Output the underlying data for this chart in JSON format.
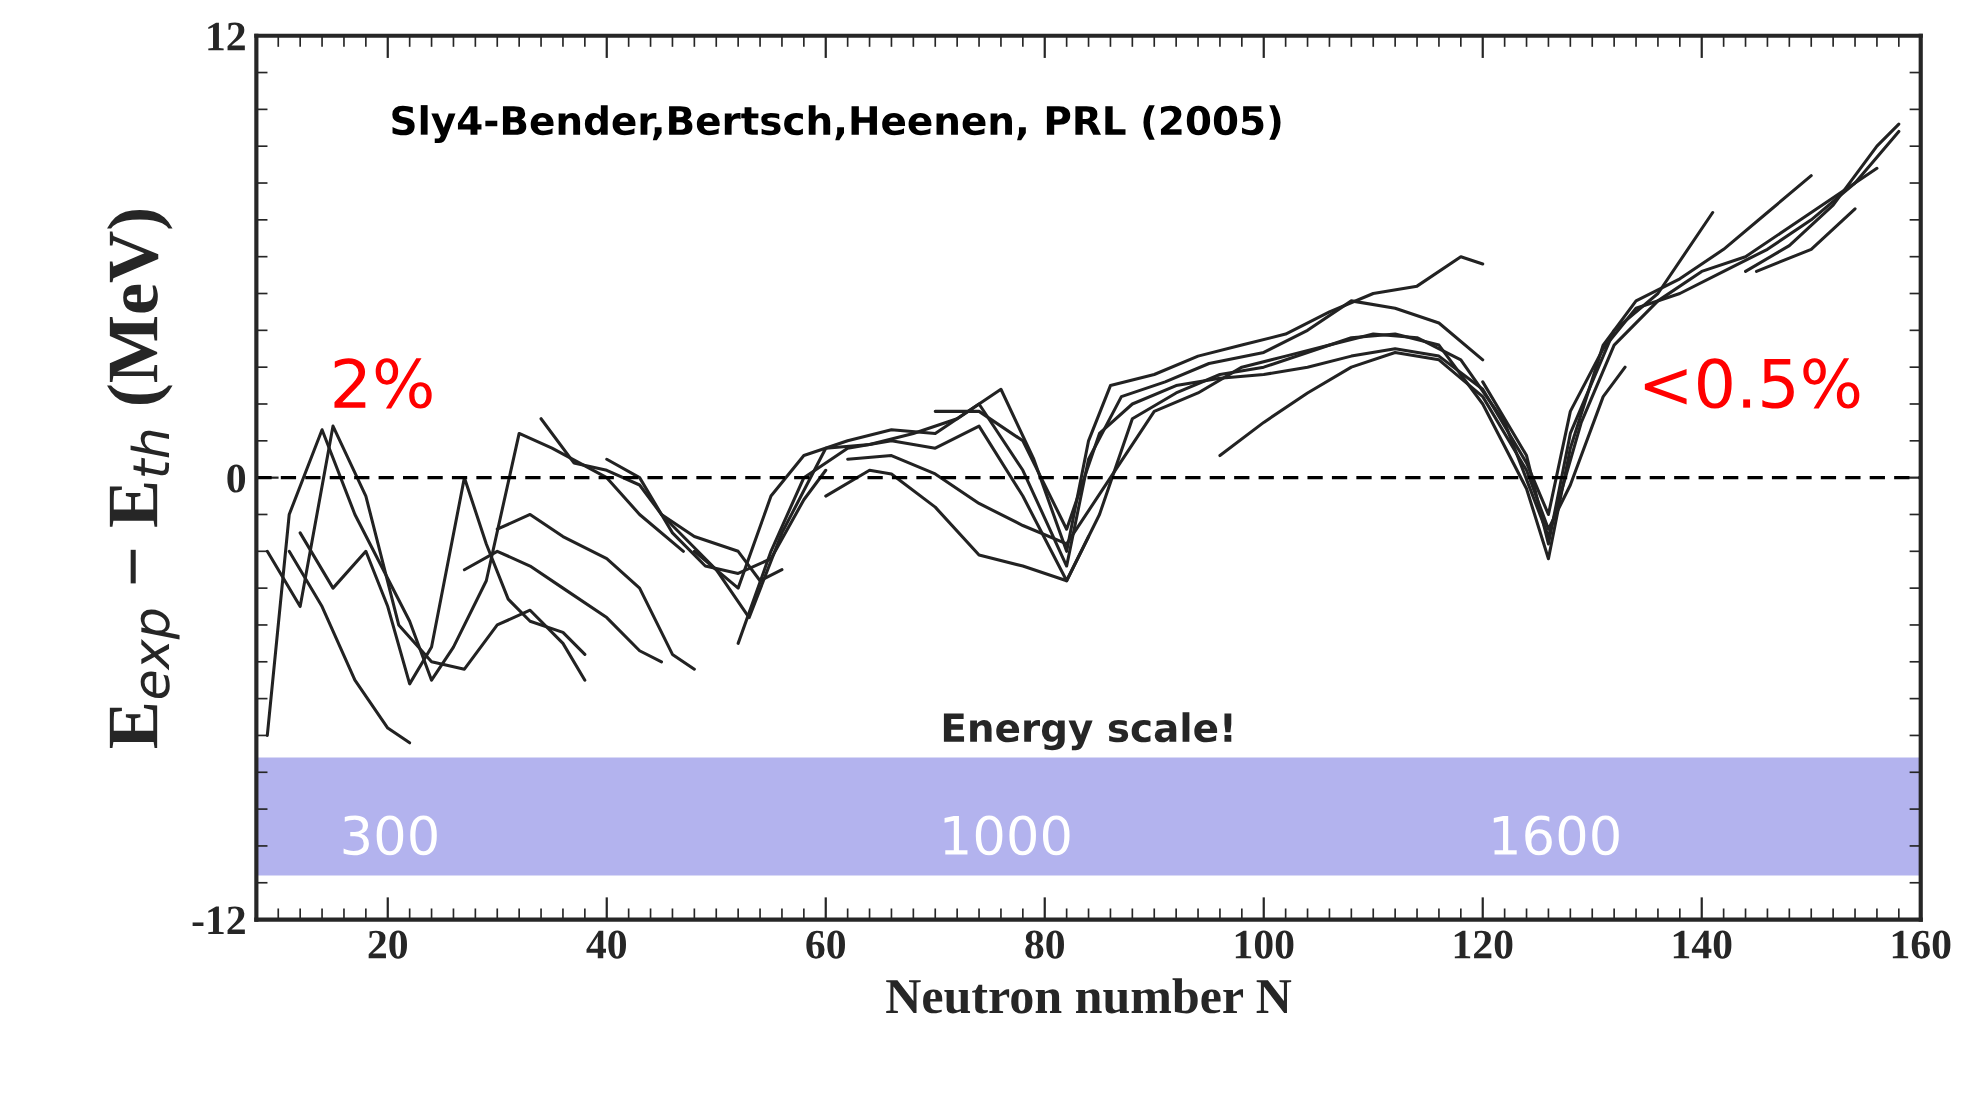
{
  "chart_data": {
    "type": "line",
    "xlabel": "Neutron number N",
    "ylabel": "E$_{exp}$ − E$_{th}$ (MeV)",
    "xlim": [
      8,
      160
    ],
    "xticks": [
      20,
      40,
      60,
      80,
      100,
      120,
      140,
      160
    ],
    "ylim": [
      -12,
      12
    ],
    "yticks": [
      -12,
      0,
      12
    ],
    "grid": false,
    "legend": false,
    "line_style": "solid",
    "marker": "none",
    "ref_lines": [
      {
        "axis": "y",
        "value": 0,
        "color": "#000000",
        "line_style": "dashed"
      }
    ],
    "bands": [
      {
        "axis": "y",
        "from": -10.8,
        "to": -7.6,
        "label": "Energy scale!",
        "color": "#b3b3ee"
      }
    ],
    "annotations": [
      "Sly4-Bender,Bertsch,Heenen, PRL (2005)",
      "2%",
      "<0.5%",
      "300",
      "1000",
      "1600"
    ],
    "series": [
      {
        "color": "#222222",
        "x": [
          9,
          11,
          14,
          17,
          22,
          24,
          26,
          29,
          32,
          35,
          40,
          43,
          47
        ],
        "values": [
          -7,
          -1,
          1.3,
          -1,
          -3.9,
          -5.5,
          -4.6,
          -2.8,
          1.2,
          0.8,
          0,
          -1,
          -2
        ]
      },
      {
        "color": "#222222",
        "x": [
          9,
          12,
          15,
          18,
          21,
          24,
          27,
          30,
          33,
          36,
          38
        ],
        "values": [
          -2,
          -3.5,
          1.4,
          -0.5,
          -4,
          -5,
          -5.2,
          -4,
          -3.6,
          -4.5,
          -5.5
        ]
      },
      {
        "color": "#222222",
        "x": [
          11,
          14,
          17,
          20,
          22
        ],
        "values": [
          -2,
          -3.5,
          -5.5,
          -6.8,
          -7.2
        ]
      },
      {
        "color": "#222222",
        "x": [
          12,
          15,
          18,
          20,
          22,
          24,
          27,
          29,
          31,
          33,
          36,
          38
        ],
        "values": [
          -1.5,
          -3,
          -2,
          -3.5,
          -5.6,
          -4.6,
          0,
          -1.8,
          -3.3,
          -3.9,
          -4.2,
          -4.8
        ]
      },
      {
        "color": "#222222",
        "x": [
          27,
          30,
          33,
          36,
          40,
          43,
          45
        ],
        "values": [
          -2.5,
          -2,
          -2.4,
          -3,
          -3.8,
          -4.7,
          -5
        ]
      },
      {
        "color": "#222222",
        "x": [
          30,
          33,
          36,
          40,
          43,
          46,
          48
        ],
        "values": [
          -1.4,
          -1,
          -1.6,
          -2.2,
          -3,
          -4.8,
          -5.2
        ]
      },
      {
        "color": "#222222",
        "x": [
          34,
          37,
          40,
          43,
          45,
          48,
          52,
          54,
          56
        ],
        "values": [
          1.6,
          0.4,
          0.2,
          -0.2,
          -1,
          -1.6,
          -2,
          -2.8,
          -2.5
        ]
      },
      {
        "color": "#222222",
        "x": [
          40,
          43,
          46,
          49,
          52,
          55,
          58,
          60
        ],
        "values": [
          0.5,
          0,
          -1.5,
          -2.4,
          -2.6,
          -2.2,
          -0.6,
          0.2
        ]
      },
      {
        "color": "#222222",
        "x": [
          45,
          50,
          53,
          56,
          60,
          64,
          68,
          72,
          76,
          79,
          82,
          84,
          86,
          90,
          94,
          98,
          102,
          106,
          110,
          114,
          118,
          120
        ],
        "values": [
          -1,
          -2.5,
          -3.8,
          -1.5,
          0.8,
          0.9,
          1.2,
          1.6,
          2.4,
          0.5,
          -2,
          1,
          2.5,
          2.8,
          3.3,
          3.6,
          3.9,
          4.5,
          5,
          5.2,
          6,
          5.8
        ]
      },
      {
        "color": "#222222",
        "x": [
          48,
          52,
          55,
          58,
          62,
          66,
          70,
          74,
          78,
          82,
          84,
          87,
          91,
          95,
          100,
          104,
          108,
          112,
          116,
          120
        ],
        "values": [
          -2,
          -3,
          -0.5,
          0.6,
          1,
          1.3,
          1.2,
          2,
          0.2,
          -2.4,
          0.5,
          2.2,
          2.6,
          3.1,
          3.4,
          4,
          4.8,
          4.6,
          4.2,
          3.2
        ]
      },
      {
        "color": "#222222",
        "x": [
          52,
          55,
          58,
          62,
          66,
          70,
          74,
          78,
          82,
          85,
          88,
          92,
          96,
          100,
          104,
          108,
          112,
          116,
          120,
          124,
          126,
          128,
          131,
          134,
          138,
          142,
          146,
          150
        ],
        "values": [
          -4.5,
          -2,
          0,
          0.8,
          1,
          0.8,
          1.4,
          -0.5,
          -2.8,
          -1,
          1.6,
          2.3,
          2.8,
          3,
          3.4,
          3.8,
          3.9,
          3.6,
          2,
          -0.3,
          -2.2,
          0.8,
          3.6,
          4.8,
          5.4,
          6.2,
          7.2,
          8.2
        ]
      },
      {
        "color": "#222222",
        "x": [
          60,
          64,
          66,
          70,
          74,
          78,
          82,
          84
        ],
        "values": [
          -0.5,
          0.2,
          0.1,
          -0.8,
          -2.1,
          -2.4,
          -2.8,
          -1.6
        ]
      },
      {
        "color": "#222222",
        "x": [
          62,
          66,
          70,
          74,
          78,
          82,
          86,
          90,
          94,
          98,
          102,
          106,
          110,
          114,
          118,
          122,
          126,
          129,
          132,
          136,
          140,
          144,
          148,
          152,
          156
        ],
        "values": [
          0.5,
          0.6,
          0.1,
          -0.7,
          -1.3,
          -1.8,
          0,
          1.8,
          2.3,
          3,
          3.3,
          3.6,
          3.9,
          3.8,
          3.2,
          1.5,
          -1.6,
          1.5,
          3.6,
          4.8,
          5.6,
          6,
          6.8,
          7.6,
          8.4
        ]
      },
      {
        "color": "#222222",
        "x": [
          70,
          74,
          78,
          82,
          85,
          88,
          92,
          96,
          100,
          104,
          108,
          112,
          116,
          120,
          124,
          126,
          128,
          131,
          134,
          138,
          142,
          146,
          150,
          154,
          158
        ],
        "values": [
          1.8,
          1.8,
          1,
          -1.4,
          1.2,
          2,
          2.5,
          2.7,
          2.8,
          3,
          3.3,
          3.5,
          3.3,
          2.4,
          0.4,
          -1,
          1.8,
          3.5,
          4.6,
          5,
          5.6,
          6.2,
          7,
          8,
          9.4
        ]
      },
      {
        "color": "#222222",
        "x": [
          96,
          100,
          104,
          108,
          112,
          116,
          120,
          124,
          126,
          128,
          131,
          133
        ],
        "values": [
          0.6,
          1.5,
          2.3,
          3,
          3.4,
          3.2,
          2.2,
          0.2,
          -1.4,
          -0.2,
          2.2,
          3
        ]
      },
      {
        "color": "#222222",
        "x": [
          120,
          124,
          126,
          128,
          132,
          136,
          141
        ],
        "values": [
          2.6,
          0.6,
          -1.8,
          1.2,
          4,
          5,
          7.2
        ]
      },
      {
        "color": "#222222",
        "x": [
          144,
          148,
          152,
          156,
          158
        ],
        "values": [
          5.6,
          6.3,
          7.4,
          9,
          9.6
        ]
      },
      {
        "color": "#222222",
        "x": [
          145,
          150,
          154
        ],
        "values": [
          5.6,
          6.2,
          7.3
        ]
      }
    ]
  }
}
